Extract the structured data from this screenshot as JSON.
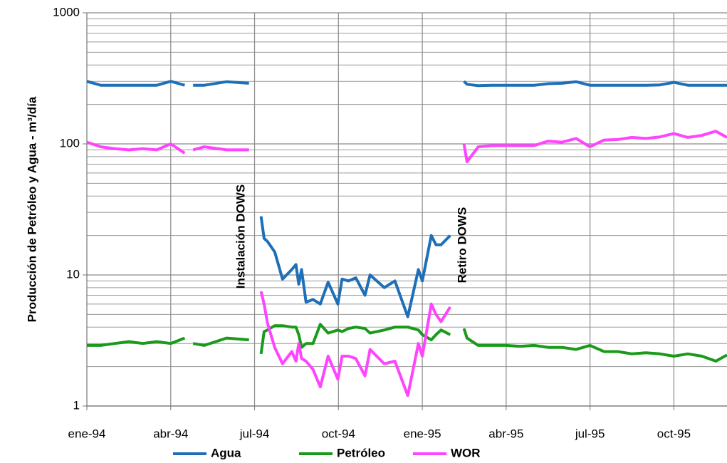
{
  "chart_data": {
    "type": "line",
    "y_label": "Producción de Petróleo y Agua - m³/día",
    "annotations": [
      {
        "text": "Instalación DOWS"
      },
      {
        "text": "Retiro DOWS"
      }
    ],
    "log_y": true,
    "grid": true,
    "legend": "bottom",
    "xlim": [
      0,
      22.9
    ],
    "xticks": [
      {
        "value": 0,
        "label": "ene-94"
      },
      {
        "value": 3,
        "label": "abr-94"
      },
      {
        "value": 6,
        "label": "jul-94"
      },
      {
        "value": 9,
        "label": "oct-94"
      },
      {
        "value": 12,
        "label": "ene-95"
      },
      {
        "value": 15,
        "label": "abr-95"
      },
      {
        "value": 18,
        "label": "jul-95"
      },
      {
        "value": 21,
        "label": "oct-95"
      }
    ],
    "ylim": [
      1,
      1000
    ],
    "yticks": [
      1,
      10,
      100,
      1000
    ],
    "x": [
      0,
      0.5,
      1,
      1.5,
      2,
      2.5,
      3,
      3.5,
      3.65,
      3.8,
      4.2,
      5,
      5.8,
      6.0,
      6.23,
      6.34,
      6.46,
      6.72,
      7.0,
      7.33,
      7.48,
      7.58,
      7.68,
      7.84,
      8.09,
      8.35,
      8.63,
      8.98,
      9.13,
      9.36,
      9.62,
      9.95,
      10.13,
      10.64,
      11.02,
      11.48,
      11.86,
      12.0,
      12.32,
      12.49,
      12.67,
      13.0,
      13.2,
      13.49,
      13.6,
      14,
      14.5,
      15,
      15.5,
      16,
      16.5,
      17,
      17.5,
      18,
      18.5,
      19,
      19.5,
      20,
      20.5,
      21,
      21.5,
      22,
      22.5,
      22.9
    ],
    "series": [
      {
        "name": "Agua",
        "color": "#1f6fb8",
        "values": [
          300,
          280,
          280,
          280,
          280,
          280,
          300,
          280,
          null,
          280,
          280,
          298,
          290,
          null,
          28,
          19,
          18,
          15,
          9.3,
          11,
          12,
          8.5,
          11,
          6.2,
          6.5,
          6,
          8.8,
          6,
          9.3,
          9,
          9.5,
          7,
          10,
          8,
          9,
          4.8,
          11,
          9,
          20,
          17,
          17,
          20,
          null,
          300,
          285,
          278,
          280,
          280,
          280,
          280,
          288,
          290,
          298,
          280,
          280,
          280,
          280,
          280,
          282,
          295,
          280,
          280,
          280,
          280
        ]
      },
      {
        "name": "Petróleo",
        "color": "#1a9a1a",
        "values": [
          2.9,
          2.9,
          3.0,
          3.1,
          3.0,
          3.1,
          3.0,
          3.3,
          null,
          3.0,
          2.9,
          3.3,
          3.2,
          null,
          2.5,
          3.7,
          3.8,
          4.1,
          4.1,
          4.0,
          4.0,
          3.5,
          2.8,
          3.0,
          3.0,
          4.2,
          3.6,
          3.8,
          3.7,
          3.9,
          4.0,
          3.9,
          3.6,
          3.8,
          4.0,
          4.0,
          3.8,
          3.5,
          3.2,
          3.5,
          3.8,
          3.5,
          null,
          3.9,
          3.3,
          2.9,
          2.9,
          2.9,
          2.85,
          2.9,
          2.8,
          2.8,
          2.7,
          2.9,
          2.6,
          2.6,
          2.5,
          2.55,
          2.5,
          2.4,
          2.5,
          2.4,
          2.2,
          2.45
        ]
      },
      {
        "name": "WOR",
        "color": "#ff44ff",
        "values": [
          103,
          95,
          92,
          90,
          92,
          90,
          100,
          85,
          null,
          90,
          95,
          90,
          90,
          null,
          7.5,
          6,
          4.3,
          2.8,
          2.1,
          2.6,
          2.2,
          3.0,
          2.3,
          2.2,
          1.9,
          1.4,
          2.4,
          1.6,
          2.4,
          2.4,
          2.3,
          1.7,
          2.7,
          2.1,
          2.2,
          1.2,
          3.0,
          2.4,
          6.0,
          5.0,
          4.4,
          5.7,
          null,
          100,
          73,
          95,
          97,
          97,
          97,
          97,
          105,
          103,
          110,
          95,
          107,
          108,
          112,
          110,
          113,
          120,
          112,
          116,
          125,
          112
        ]
      }
    ]
  }
}
